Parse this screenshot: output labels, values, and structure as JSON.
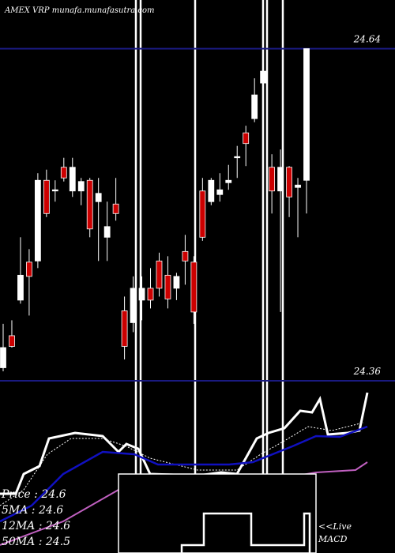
{
  "chart_data": {
    "type": "candlestick",
    "title": "AMEX VRP munafa.munafasutra.com",
    "ylim": [
      24.36,
      24.681
    ],
    "yticks": [
      24.36,
      24.64
    ],
    "up_color": "#ffffff",
    "down_color": "#cc0000",
    "open": [
      24.371,
      24.398,
      24.428,
      24.46,
      24.461,
      24.529,
      24.52,
      24.54,
      24.52,
      24.52,
      24.529,
      24.511,
      24.481,
      24.509,
      24.419,
      24.409,
      24.428,
      24.438,
      24.461,
      24.449,
      24.438,
      24.469,
      24.46,
      24.52,
      24.511,
      24.517,
      24.527,
      24.548,
      24.569,
      24.581,
      24.611,
      24.54,
      24.52,
      24.54,
      24.523,
      24.529
    ],
    "high": [
      24.408,
      24.411,
      24.481,
      24.471,
      24.535,
      24.538,
      24.529,
      24.548,
      24.548,
      24.531,
      24.531,
      24.531,
      24.511,
      24.531,
      24.431,
      24.448,
      24.448,
      24.455,
      24.468,
      24.465,
      24.451,
      24.483,
      24.465,
      24.531,
      24.531,
      24.535,
      24.542,
      24.558,
      24.575,
      24.615,
      24.631,
      24.551,
      24.555,
      24.541,
      24.531,
      24.64
    ],
    "low": [
      24.368,
      24.388,
      24.425,
      24.415,
      24.455,
      24.498,
      24.511,
      24.528,
      24.515,
      24.508,
      24.481,
      24.461,
      24.461,
      24.495,
      24.378,
      24.401,
      24.411,
      24.421,
      24.431,
      24.421,
      24.428,
      24.441,
      24.408,
      24.478,
      24.508,
      24.511,
      24.521,
      24.531,
      24.541,
      24.578,
      24.608,
      24.501,
      24.418,
      24.498,
      24.481,
      24.501
    ],
    "close": [
      24.388,
      24.389,
      24.449,
      24.448,
      24.529,
      24.501,
      24.521,
      24.531,
      24.54,
      24.528,
      24.488,
      24.518,
      24.49,
      24.501,
      24.389,
      24.438,
      24.438,
      24.428,
      24.438,
      24.429,
      24.448,
      24.461,
      24.418,
      24.481,
      24.529,
      24.521,
      24.529,
      24.549,
      24.56,
      24.601,
      24.621,
      24.52,
      24.54,
      24.515,
      24.525,
      24.64
    ],
    "annotations": [
      "Price : 24.6",
      "5MA : 24.6",
      "12MA : 24.6",
      "50MA : 24.5",
      "<<Live",
      "MACD"
    ]
  }
}
